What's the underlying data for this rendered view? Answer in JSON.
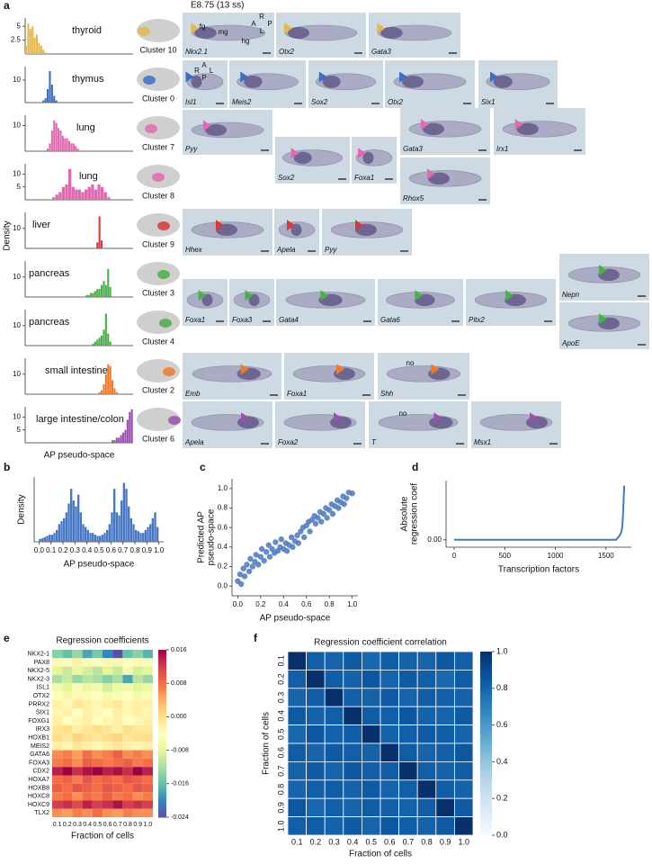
{
  "figure": {
    "panel_labels": [
      "a",
      "b",
      "c",
      "d",
      "e",
      "f"
    ],
    "stage": "E8.75 (13 ss)",
    "a_ylabel": "Density",
    "a_xlabel": "AP pseudo-space",
    "images": [
      {
        "gene": "Nkx2.1",
        "notes": [
          "fg",
          "mg",
          "hg",
          "R",
          "A",
          "P",
          "L"
        ]
      },
      {
        "gene": "Otx2"
      },
      {
        "gene": "Gata3"
      },
      {
        "gene": "Isl1",
        "notes": [
          "A",
          "R",
          "L",
          "P"
        ]
      },
      {
        "gene": "Meis2"
      },
      {
        "gene": "Sox2"
      },
      {
        "gene": "Otx2"
      },
      {
        "gene": "Six1"
      },
      {
        "gene": "Pyy"
      },
      {
        "gene": "Sox2"
      },
      {
        "gene": "Foxa1"
      },
      {
        "gene": "Gata3"
      },
      {
        "gene": "Irx1"
      },
      {
        "gene": "Rhox5"
      },
      {
        "gene": "Hhex"
      },
      {
        "gene": "Apela"
      },
      {
        "gene": "Pyy"
      },
      {
        "gene": "Foxa1"
      },
      {
        "gene": "Foxa3"
      },
      {
        "gene": "Gata4"
      },
      {
        "gene": "Gata6"
      },
      {
        "gene": "Pitx2"
      },
      {
        "gene": "Nepn"
      },
      {
        "gene": "ApoE"
      },
      {
        "gene": "Emb"
      },
      {
        "gene": "Foxa1"
      },
      {
        "gene": "Shh",
        "notes": [
          "no"
        ]
      },
      {
        "gene": "Apela"
      },
      {
        "gene": "Foxa2"
      },
      {
        "gene": "T",
        "notes": [
          "no"
        ]
      },
      {
        "gene": "Msx1"
      }
    ]
  },
  "chart_data": [
    {
      "type": "histogram",
      "title": "thyroid",
      "cluster": "Cluster 10",
      "color": "#e3b84c",
      "xlim": [
        0,
        1
      ],
      "ylim": [
        0,
        6.5
      ],
      "yticks": [
        2.5,
        5
      ],
      "bins": [
        0,
        0.02,
        0.04,
        0.06,
        0.08,
        0.1,
        0.12,
        0.14,
        0.16,
        0.18,
        0.2
      ],
      "values": [
        1.5,
        5.5,
        4.5,
        5,
        3,
        3.5,
        2,
        1.5,
        0.8,
        0.3
      ]
    },
    {
      "type": "histogram",
      "title": "thymus",
      "cluster": "Cluster 0",
      "color": "#3a6fc4",
      "xlim": [
        0,
        1
      ],
      "ylim": [
        0,
        16
      ],
      "yticks": [
        10
      ],
      "bins": [
        0.16,
        0.18,
        0.2,
        0.22,
        0.24,
        0.26,
        0.28,
        0.3
      ],
      "values": [
        1,
        2,
        6,
        14,
        8,
        3,
        1
      ]
    },
    {
      "type": "histogram",
      "title": "lung",
      "cluster": "Cluster 7",
      "color": "#e06ab0",
      "xlim": [
        0,
        1
      ],
      "ylim": [
        0,
        14
      ],
      "yticks": [
        10
      ],
      "bins": [
        0.2,
        0.22,
        0.24,
        0.26,
        0.28,
        0.3,
        0.32,
        0.34,
        0.36,
        0.38,
        0.4,
        0.42,
        0.44,
        0.46,
        0.48,
        0.5
      ],
      "values": [
        1,
        3,
        8,
        12,
        11,
        9,
        8,
        6,
        5,
        5,
        4,
        3,
        3,
        2,
        1
      ]
    },
    {
      "type": "histogram",
      "title": "lung",
      "cluster": "Cluster 8",
      "color": "#e06ab0",
      "xlim": [
        0,
        1
      ],
      "ylim": [
        0,
        14
      ],
      "yticks": [
        5,
        10
      ],
      "bins": [
        0.25,
        0.28,
        0.31,
        0.34,
        0.37,
        0.4,
        0.43,
        0.46,
        0.49,
        0.52,
        0.55,
        0.58,
        0.61,
        0.64,
        0.67,
        0.7,
        0.73,
        0.76,
        0.79
      ],
      "values": [
        1,
        2,
        3,
        5,
        6,
        12,
        5,
        4,
        4,
        3,
        4,
        5,
        6,
        4,
        6,
        5,
        3,
        1
      ]
    },
    {
      "type": "histogram",
      "title": "liver",
      "cluster": "Cluster 9",
      "color": "#d63a3a",
      "xlim": [
        0,
        1
      ],
      "ylim": [
        0,
        18
      ],
      "yticks": [
        10
      ],
      "bins": [
        0.66,
        0.68,
        0.7,
        0.72
      ],
      "values": [
        3,
        16,
        4
      ]
    },
    {
      "type": "histogram",
      "title": "pancreas",
      "cluster": "Cluster 3",
      "color": "#4ab04a",
      "xlim": [
        0,
        1
      ],
      "ylim": [
        0,
        18
      ],
      "yticks": [
        10
      ],
      "bins": [
        0.56,
        0.58,
        0.6,
        0.62,
        0.64,
        0.66,
        0.68,
        0.7,
        0.72,
        0.74,
        0.76,
        0.78,
        0.8
      ],
      "values": [
        1,
        1,
        2,
        2,
        3,
        4,
        4,
        6,
        8,
        6,
        14,
        5
      ]
    },
    {
      "type": "histogram",
      "title": "pancreas",
      "cluster": "Cluster 4",
      "color": "#4ab04a",
      "xlim": [
        0,
        1
      ],
      "ylim": [
        0,
        18
      ],
      "yticks": [
        10
      ],
      "bins": [
        0.62,
        0.64,
        0.66,
        0.68,
        0.7,
        0.72,
        0.74,
        0.76,
        0.78,
        0.8
      ],
      "values": [
        1,
        2,
        3,
        4,
        5,
        8,
        16,
        6,
        2
      ]
    },
    {
      "type": "histogram",
      "title": "small intestine",
      "cluster": "Cluster 2",
      "color": "#f07a2a",
      "xlim": [
        0,
        1
      ],
      "ylim": [
        0,
        18
      ],
      "yticks": [
        10
      ],
      "bins": [
        0.68,
        0.7,
        0.72,
        0.74,
        0.76,
        0.78,
        0.8,
        0.82,
        0.84,
        0.86
      ],
      "values": [
        1,
        2,
        5,
        10,
        15,
        14,
        7,
        3,
        1
      ]
    },
    {
      "type": "histogram",
      "title": "large intestine/colon",
      "cluster": "Cluster 6",
      "color": "#9a50b0",
      "xlim": [
        0,
        1
      ],
      "ylim": [
        0,
        14
      ],
      "yticks": [
        5,
        10
      ],
      "bins": [
        0.8,
        0.82,
        0.84,
        0.86,
        0.88,
        0.9,
        0.92,
        0.94,
        0.96,
        0.98,
        1
      ],
      "values": [
        1,
        1,
        2,
        2,
        3,
        4,
        5,
        9,
        12,
        13
      ]
    },
    {
      "type": "histogram",
      "x_label": "AP pseudo-space",
      "y_label": "Density",
      "color": "#4a78c0",
      "xlim": [
        -0.04,
        1.04
      ],
      "ylim": [
        0,
        11
      ],
      "xticks": [
        {
          "value": 0,
          "label": "0.0"
        },
        0.1,
        0.2,
        0.3,
        0.4,
        0.5,
        0.6,
        0.7,
        0.8,
        0.9,
        {
          "value": 1,
          "label": "1.0"
        }
      ],
      "bins": [
        0,
        0.02,
        0.04,
        0.06,
        0.08,
        0.1,
        0.12,
        0.14,
        0.16,
        0.18,
        0.2,
        0.22,
        0.24,
        0.26,
        0.28,
        0.3,
        0.32,
        0.34,
        0.36,
        0.38,
        0.4,
        0.42,
        0.44,
        0.46,
        0.48,
        0.5,
        0.52,
        0.54,
        0.56,
        0.58,
        0.6,
        0.62,
        0.64,
        0.66,
        0.68,
        0.7,
        0.72,
        0.74,
        0.76,
        0.78,
        0.8,
        0.82,
        0.84,
        0.86,
        0.88,
        0.9,
        0.92,
        0.94,
        0.96,
        0.98,
        1
      ],
      "values": [
        0.5,
        0.6,
        0.8,
        1,
        1.2,
        1.2,
        1.5,
        2,
        3,
        3.5,
        4,
        5,
        6.5,
        9,
        7,
        6,
        8,
        5,
        3,
        2.5,
        2,
        1.5,
        1.5,
        1.2,
        1,
        1,
        1.2,
        1.5,
        2,
        3,
        5,
        9,
        5,
        4.5,
        7,
        10,
        9,
        6,
        4,
        3,
        2,
        1.8,
        1.5,
        1.5,
        2,
        2.5,
        3,
        4,
        5,
        2.5
      ]
    },
    {
      "type": "scatter",
      "x_label": "AP pseudo-space",
      "y_label": [
        "Predicted AP",
        "pseudo-space"
      ],
      "color": "#4a78c0",
      "xlim": [
        -0.05,
        1.05
      ],
      "ylim": [
        -0.1,
        1.1
      ],
      "xticks": [
        {
          "value": 0,
          "label": "0.0"
        },
        0.2,
        0.4,
        0.6,
        0.8,
        {
          "value": 1,
          "label": "1.0"
        }
      ],
      "yticks": [
        {
          "value": 0,
          "label": "0.0"
        },
        0.2,
        0.4,
        0.6,
        0.8,
        {
          "value": 1,
          "label": "1.0"
        }
      ],
      "x": [
        0,
        0.02,
        0.03,
        0.05,
        0.06,
        0.08,
        0.1,
        0.11,
        0.13,
        0.15,
        0.16,
        0.18,
        0.2,
        0.21,
        0.23,
        0.25,
        0.27,
        0.28,
        0.3,
        0.32,
        0.33,
        0.35,
        0.37,
        0.38,
        0.4,
        0.42,
        0.43,
        0.45,
        0.47,
        0.48,
        0.5,
        0.52,
        0.53,
        0.55,
        0.57,
        0.58,
        0.6,
        0.62,
        0.63,
        0.65,
        0.67,
        0.68,
        0.7,
        0.72,
        0.73,
        0.75,
        0.77,
        0.78,
        0.8,
        0.82,
        0.83,
        0.85,
        0.87,
        0.88,
        0.9,
        0.92,
        0.93,
        0.95,
        0.97,
        1
      ],
      "values": [
        0.05,
        0.12,
        0.02,
        0.18,
        0.1,
        0.22,
        0.15,
        0.28,
        0.2,
        0.25,
        0.32,
        0.22,
        0.3,
        0.38,
        0.26,
        0.35,
        0.42,
        0.3,
        0.38,
        0.34,
        0.45,
        0.36,
        0.4,
        0.48,
        0.38,
        0.44,
        0.36,
        0.42,
        0.5,
        0.4,
        0.46,
        0.52,
        0.44,
        0.56,
        0.6,
        0.5,
        0.62,
        0.66,
        0.56,
        0.68,
        0.72,
        0.64,
        0.7,
        0.76,
        0.66,
        0.74,
        0.8,
        0.7,
        0.78,
        0.84,
        0.74,
        0.82,
        0.88,
        0.8,
        0.86,
        0.92,
        0.84,
        0.9,
        0.96,
        0.95
      ]
    },
    {
      "type": "line",
      "x_label": "Transcription factors",
      "y_label": [
        "Absolute",
        "regression coef"
      ],
      "color": "#4a78c0",
      "xlim": [
        -80,
        1750
      ],
      "ylim": [
        -0.003,
        0.024
      ],
      "xticks": [
        0,
        500,
        1000,
        1500
      ],
      "yticks": [
        {
          "value": 0,
          "label": "0.00"
        }
      ],
      "x": [
        0,
        1600,
        1620,
        1640,
        1650,
        1660,
        1665,
        1670,
        1675,
        1680
      ],
      "values": [
        0,
        0,
        0.001,
        0.002,
        0.003,
        0.005,
        0.008,
        0.012,
        0.017,
        0.022
      ]
    },
    {
      "type": "heatmap",
      "title": "Regression coefficients",
      "x_label": "Fraction of cells",
      "clim": [
        -0.024,
        0.016
      ],
      "colormap": [
        "#5e4fa2",
        "#3288bd",
        "#66c2a5",
        "#abdda4",
        "#e6f598",
        "#ffffbf",
        "#fee08b",
        "#fdae61",
        "#f46d43",
        "#d53e4f",
        "#9e0142"
      ],
      "colorbar_ticks": [
        0.016,
        0.008,
        {
          "value": 0,
          "label": "0.000"
        },
        -0.008,
        -0.016,
        -0.024
      ],
      "rows": [
        "NKX2-1",
        "PAX8",
        "NKX2-5",
        "NKX2-3",
        "ISL1",
        "OTX2",
        "PRRX2",
        "SIX1",
        "FOXG1",
        "IRX3",
        "HOXB1",
        "MEIS2",
        "GATA6",
        "FOXA3",
        "CDX2",
        "HOXA7",
        "HOXB8",
        "HOXC8",
        "HOXC9",
        "TLX2"
      ],
      "columns": [
        "0.1",
        "0.2",
        "0.3",
        "0.4",
        "0.5",
        "0.6",
        "0.7",
        "0.8",
        "0.9",
        "1.0"
      ],
      "values": [
        [
          -0.014,
          -0.016,
          -0.013,
          -0.018,
          -0.015,
          -0.02,
          -0.024,
          -0.016,
          -0.014,
          -0.017
        ],
        [
          -0.003,
          -0.004,
          -0.002,
          -0.005,
          -0.004,
          -0.003,
          -0.006,
          -0.004,
          -0.003,
          -0.005
        ],
        [
          -0.008,
          -0.01,
          -0.007,
          -0.009,
          -0.011,
          -0.008,
          -0.01,
          -0.006,
          -0.009,
          -0.008
        ],
        [
          -0.012,
          -0.01,
          -0.013,
          -0.011,
          -0.012,
          -0.014,
          -0.012,
          -0.018,
          -0.011,
          -0.013
        ],
        [
          -0.006,
          -0.008,
          -0.005,
          -0.007,
          -0.006,
          -0.009,
          -0.007,
          -0.006,
          -0.008,
          -0.007
        ],
        [
          -0.004,
          -0.006,
          -0.003,
          -0.005,
          -0.004,
          -0.006,
          -0.005,
          -0.004,
          -0.006,
          -0.005
        ],
        [
          -0.002,
          -0.003,
          -0.001,
          -0.002,
          -0.003,
          -0.002,
          -0.001,
          -0.003,
          -0.002,
          -0.002
        ],
        [
          -0.003,
          -0.002,
          -0.004,
          -0.002,
          -0.003,
          -0.004,
          -0.002,
          -0.003,
          -0.002,
          -0.003
        ],
        [
          -0.002,
          -0.004,
          -0.003,
          -0.002,
          -0.004,
          -0.003,
          -0.002,
          -0.004,
          -0.003,
          -0.002
        ],
        [
          -0.001,
          0,
          -0.002,
          -0.001,
          0,
          -0.001,
          -0.002,
          0,
          -0.001,
          -0.001
        ],
        [
          0,
          -0.001,
          0.001,
          0,
          -0.001,
          0,
          0.001,
          -0.001,
          0,
          0
        ],
        [
          -0.002,
          -0.003,
          -0.001,
          -0.002,
          -0.003,
          -0.002,
          -0.001,
          -0.002,
          -0.003,
          -0.002
        ],
        [
          0.006,
          0.007,
          0.005,
          0.008,
          0.006,
          0.007,
          0.009,
          0.006,
          0.007,
          0.006
        ],
        [
          0.007,
          0.008,
          0.006,
          0.009,
          0.008,
          0.007,
          0.008,
          0.009,
          0.007,
          0.008
        ],
        [
          0.014,
          0.016,
          0.013,
          0.015,
          0.016,
          0.014,
          0.015,
          0.013,
          0.016,
          0.014
        ],
        [
          0.008,
          0.009,
          0.007,
          0.01,
          0.008,
          0.009,
          0.008,
          0.01,
          0.009,
          0.008
        ],
        [
          0.009,
          0.008,
          0.01,
          0.009,
          0.008,
          0.01,
          0.009,
          0.008,
          0.01,
          0.009
        ],
        [
          0.007,
          0.008,
          0.006,
          0.008,
          0.007,
          0.009,
          0.007,
          0.008,
          0.006,
          0.007
        ],
        [
          0.012,
          0.013,
          0.011,
          0.014,
          0.012,
          0.013,
          0.015,
          0.012,
          0.013,
          0.012
        ],
        [
          0.006,
          0.005,
          0.007,
          0.006,
          0.008,
          0.006,
          0.005,
          0.007,
          0.006,
          0.006
        ]
      ]
    },
    {
      "type": "heatmap",
      "title": "Regression coefficient correlation",
      "x_label": "Fraction of cells",
      "y_label": "Fraction of cells",
      "clim": [
        0,
        1
      ],
      "colormap": [
        "#f7fbff",
        "#deebf7",
        "#c6dbef",
        "#9ecae1",
        "#6baed6",
        "#4292c6",
        "#2171b5",
        "#08519c",
        "#08306b"
      ],
      "colorbar_ticks": [
        {
          "value": 0,
          "label": "0.0"
        },
        0.2,
        0.4,
        0.6,
        0.8,
        {
          "value": 1,
          "label": "1.0"
        }
      ],
      "rows": [
        "0.1",
        "0.2",
        "0.3",
        "0.4",
        "0.5",
        "0.6",
        "0.7",
        "0.8",
        "0.9",
        "1.0"
      ],
      "columns": [
        "0.1",
        "0.2",
        "0.3",
        "0.4",
        "0.5",
        "0.6",
        "0.7",
        "0.8",
        "0.9",
        "1.0"
      ],
      "values": [
        [
          1,
          0.82,
          0.8,
          0.84,
          0.79,
          0.83,
          0.81,
          0.8,
          0.85,
          0.82
        ],
        [
          0.82,
          1,
          0.83,
          0.81,
          0.85,
          0.8,
          0.84,
          0.82,
          0.79,
          0.83
        ],
        [
          0.8,
          0.83,
          1,
          0.82,
          0.81,
          0.84,
          0.8,
          0.83,
          0.82,
          0.81
        ],
        [
          0.84,
          0.81,
          0.82,
          1,
          0.83,
          0.82,
          0.85,
          0.81,
          0.8,
          0.84
        ],
        [
          0.79,
          0.85,
          0.81,
          0.83,
          1,
          0.81,
          0.82,
          0.84,
          0.83,
          0.8
        ],
        [
          0.83,
          0.8,
          0.84,
          0.82,
          0.81,
          1,
          0.83,
          0.8,
          0.82,
          0.85
        ],
        [
          0.81,
          0.84,
          0.8,
          0.85,
          0.82,
          0.83,
          1,
          0.82,
          0.81,
          0.83
        ],
        [
          0.8,
          0.82,
          0.83,
          0.81,
          0.84,
          0.8,
          0.82,
          1,
          0.83,
          0.81
        ],
        [
          0.85,
          0.79,
          0.82,
          0.8,
          0.83,
          0.82,
          0.81,
          0.83,
          1,
          0.84
        ],
        [
          0.82,
          0.83,
          0.81,
          0.84,
          0.8,
          0.85,
          0.83,
          0.81,
          0.84,
          1
        ]
      ]
    }
  ]
}
